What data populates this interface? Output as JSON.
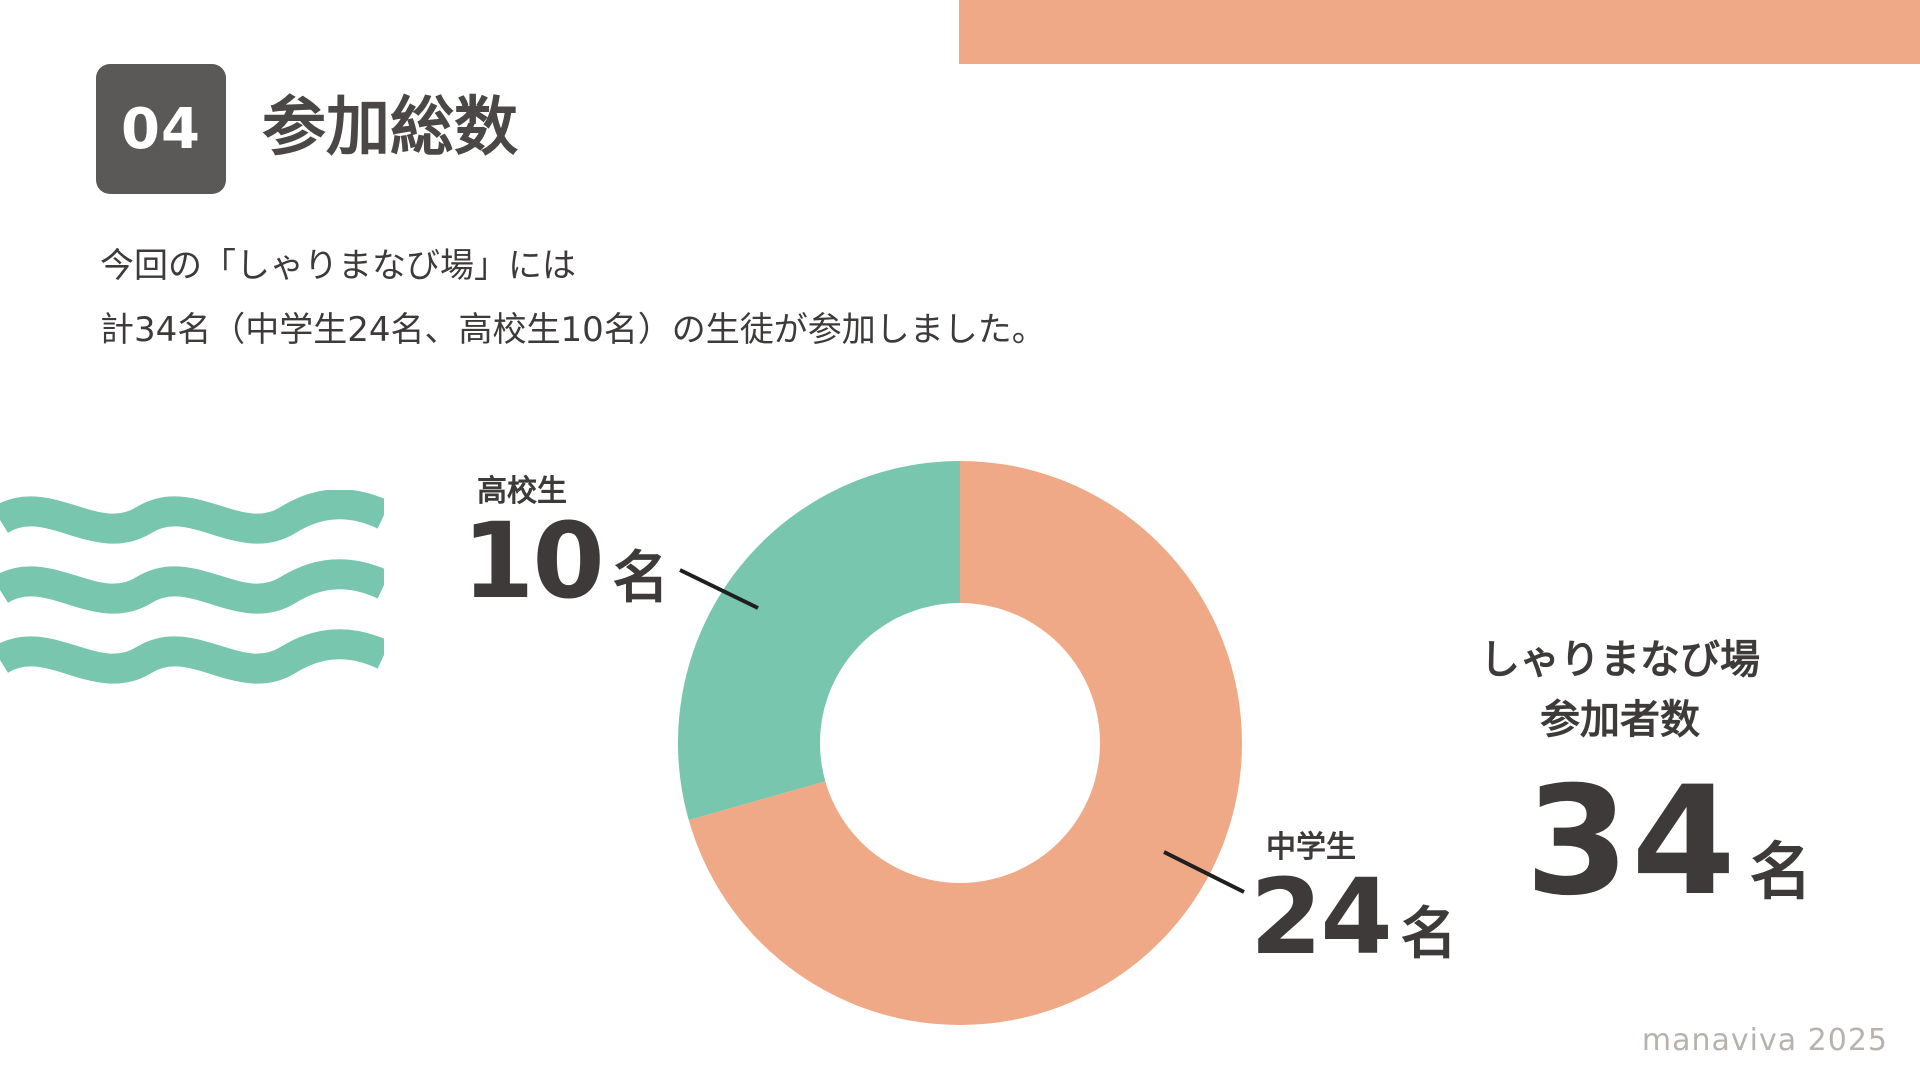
{
  "section": {
    "number": "04",
    "title": "参加総数"
  },
  "description": {
    "line1": "今回の「しゃりまなび場」には",
    "line2": "計34名（中学生24名、高校生10名）の生徒が参加しました。"
  },
  "colors": {
    "high_school": "#77c6ad",
    "middle_school": "#f0a986",
    "accent_bar": "#f0a986",
    "badge": "#5b5957"
  },
  "chart_data": {
    "type": "pie",
    "donut": true,
    "categories": [
      "高校生",
      "中学生"
    ],
    "values": [
      10,
      24
    ],
    "unit": "名",
    "labels": [
      {
        "category": "高校生",
        "value": "10",
        "unit": "名"
      },
      {
        "category": "中学生",
        "value": "24",
        "unit": "名"
      }
    ],
    "total": {
      "heading_line1": "しゃりまなび場",
      "heading_line2": "参加者数",
      "value": "34",
      "unit": "名"
    }
  },
  "footer": "manaviva 2025"
}
